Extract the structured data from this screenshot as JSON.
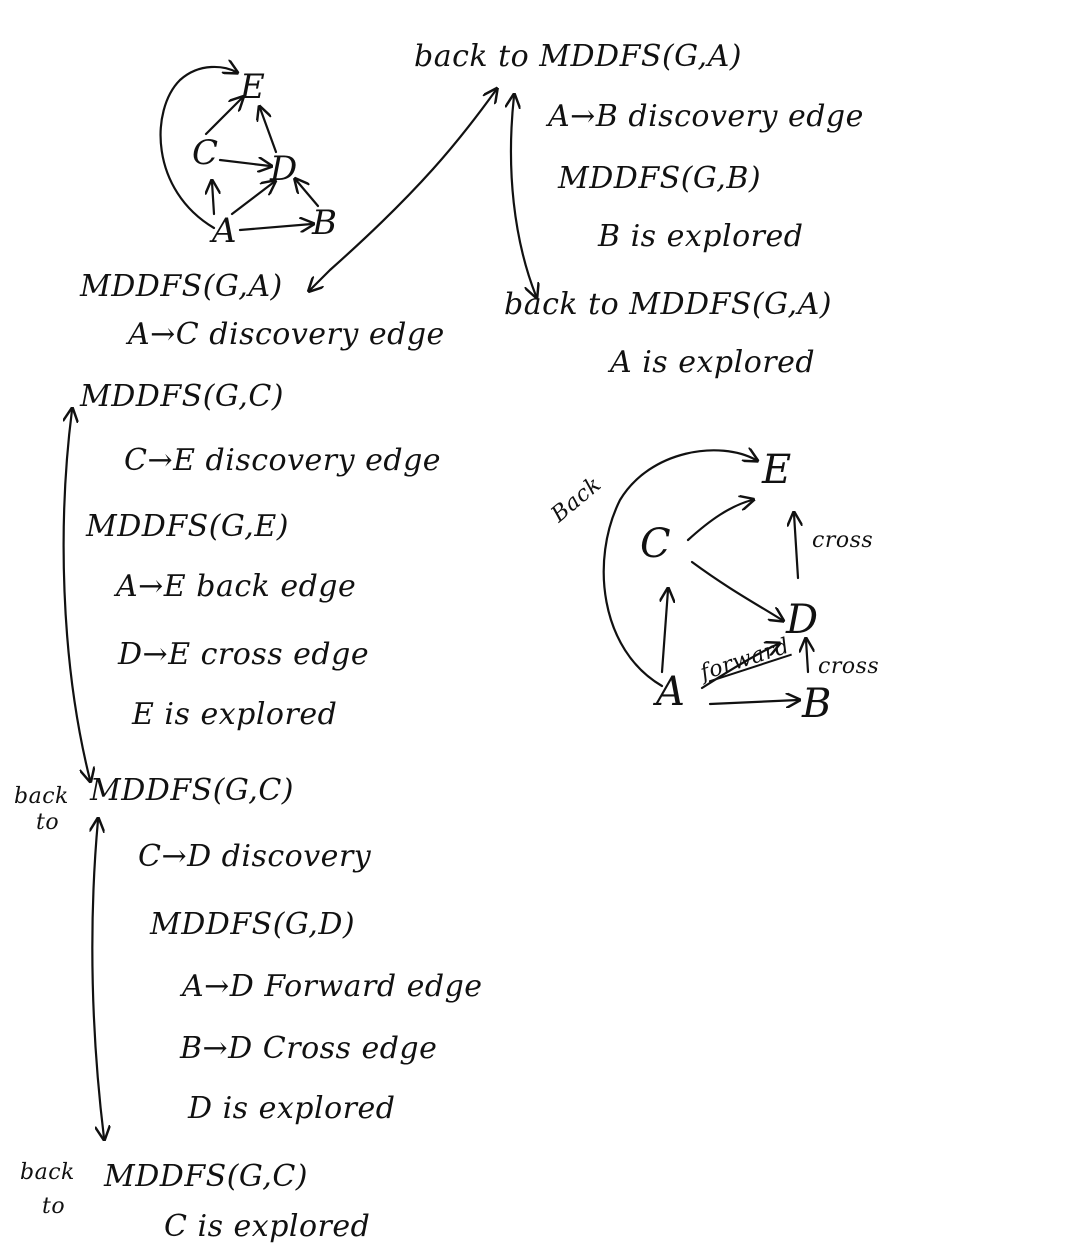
{
  "graph_small": {
    "nodes": {
      "A": "A",
      "B": "B",
      "C": "C",
      "D": "D",
      "E": "E"
    }
  },
  "trace_left": {
    "l1": "MDDFS(G,A)",
    "l2": "A→C discovery edge",
    "l3": "MDDFS(G,C)",
    "l4": "C→E discovery edge",
    "l5": "MDDFS(G,E)",
    "l6": "A→E back edge",
    "l7": "D→E cross edge",
    "l8": "E is explored",
    "l9_prefix_a": "back",
    "l9_prefix_b": "to",
    "l9": "MDDFS(G,C)",
    "l10": "C→D discovery",
    "l11": "MDDFS(G,D)",
    "l12": "A→D Forward edge",
    "l13": "B→D Cross edge",
    "l14": "D is explored",
    "l15_prefix_a": "back",
    "l15_prefix_b": "to",
    "l15": "MDDFS(G,C)",
    "l16": "C is explored"
  },
  "trace_right": {
    "r1": "back to MDDFS(G,A)",
    "r2": "A→B discovery edge",
    "r3": "MDDFS(G,B)",
    "r4": "B is explored",
    "r5": "back to MDDFS(G,A)",
    "r6": "A is explored"
  },
  "graph_large": {
    "nodes": {
      "A": "A",
      "B": "B",
      "C": "C",
      "D": "D",
      "E": "E"
    },
    "edge_labels": {
      "back": "Back",
      "forward": "forward",
      "cross_e": "cross",
      "cross_d": "cross"
    }
  }
}
